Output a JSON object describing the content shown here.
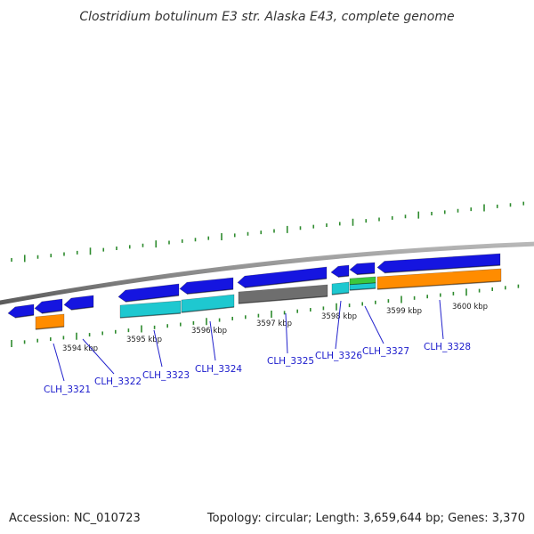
{
  "title": "Clostridium botulinum E3 str. Alaska E43, complete genome",
  "footer": {
    "accession": "Accession: NC_010723",
    "topology": "Topology: circular; Length: 3,659,644 bp; Genes: 3,370"
  },
  "colors": {
    "backbone": "#8a8a8a",
    "tick": "#2e8b2e",
    "label": "#1a1acc",
    "leader": "#2222cc",
    "feature_blue": "#1515e0",
    "feature_cyan": "#1ec8d0",
    "feature_orange": "#ff8c00",
    "feature_green": "#3cc83c",
    "feature_gray": "#6e6e6e"
  },
  "scale_labels": [
    "3594 kbp",
    "3595 kbp",
    "3596 kbp",
    "3597 kbp",
    "3598 kbp",
    "3599 kbp",
    "3600 kbp"
  ],
  "genes": [
    "CLH_3321",
    "CLH_3322",
    "CLH_3323",
    "CLH_3324",
    "CLH_3325",
    "CLH_3326",
    "CLH_3327",
    "CLH_3328"
  ]
}
